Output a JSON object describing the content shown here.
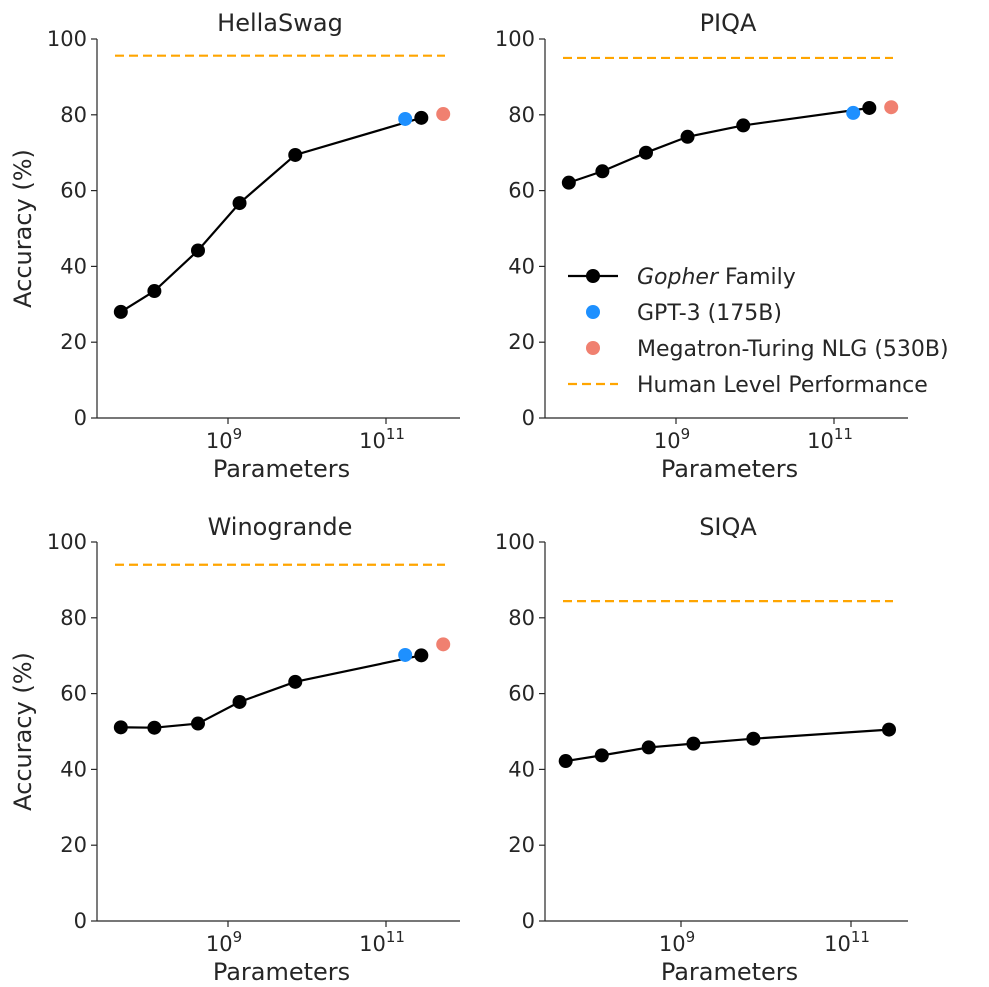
{
  "colors": {
    "gopher": "#000000",
    "gpt3": "#1E90FF",
    "mtnlg": "#F08070",
    "human": "#FFA500",
    "axis": "#262626"
  },
  "legend": {
    "placement": "inside bottom-right of PIQA panel",
    "entries": [
      {
        "key": "gopher",
        "prefix": "Gopher",
        "suffix": " Family"
      },
      {
        "key": "gpt3",
        "label": "GPT-3 (175B)"
      },
      {
        "key": "mtnlg",
        "label": "Megatron-Turing NLG (530B)"
      },
      {
        "key": "human",
        "label": "Human Level Performance"
      }
    ]
  },
  "chart_data": [
    {
      "type": "line",
      "title": "HellaSwag",
      "xlabel": "Parameters",
      "ylabel": "Accuracy (%)",
      "xscale": "log",
      "ylim": [
        0,
        100
      ],
      "yticks": [
        "0",
        "20",
        "40",
        "60",
        "80",
        "100"
      ],
      "xticks": [
        {
          "base": "10",
          "exp": "9",
          "value": 1000000000.0
        },
        {
          "base": "10",
          "exp": "11",
          "value": 100000000000.0
        }
      ],
      "series": [
        {
          "name": "Gopher Family",
          "x": [
            44000000,
            117000000,
            417000000,
            1400000000,
            7100000000,
            280000000000
          ],
          "y": [
            28.0,
            33.5,
            44.2,
            56.7,
            69.4,
            79.2
          ]
        },
        {
          "name": "GPT-3 (175B)",
          "x": [
            175000000000
          ],
          "y": [
            78.9
          ]
        },
        {
          "name": "Megatron-Turing NLG (530B)",
          "x": [
            530000000000
          ],
          "y": [
            80.2
          ]
        }
      ],
      "human_level": 95.6
    },
    {
      "type": "line",
      "title": "PIQA",
      "xlabel": "Parameters",
      "ylabel": "",
      "xscale": "log",
      "ylim": [
        0,
        100
      ],
      "yticks": [
        "0",
        "20",
        "40",
        "60",
        "80",
        "100"
      ],
      "xticks": [
        {
          "base": "10",
          "exp": "9",
          "value": 1000000000.0
        },
        {
          "base": "10",
          "exp": "11",
          "value": 100000000000.0
        }
      ],
      "series": [
        {
          "name": "Gopher Family",
          "x": [
            44000000,
            117000000,
            417000000,
            1400000000,
            7100000000,
            280000000000
          ],
          "y": [
            62.1,
            65.1,
            70.0,
            74.2,
            77.2,
            81.8
          ]
        },
        {
          "name": "GPT-3 (175B)",
          "x": [
            175000000000
          ],
          "y": [
            80.5
          ]
        },
        {
          "name": "Megatron-Turing NLG (530B)",
          "x": [
            530000000000
          ],
          "y": [
            82.0
          ]
        }
      ],
      "human_level": 95.0
    },
    {
      "type": "line",
      "title": "Winogrande",
      "xlabel": "Parameters",
      "ylabel": "Accuracy (%)",
      "xscale": "log",
      "ylim": [
        0,
        100
      ],
      "yticks": [
        "0",
        "20",
        "40",
        "60",
        "80",
        "100"
      ],
      "xticks": [
        {
          "base": "10",
          "exp": "9",
          "value": 1000000000.0
        },
        {
          "base": "10",
          "exp": "11",
          "value": 100000000000.0
        }
      ],
      "series": [
        {
          "name": "Gopher Family",
          "x": [
            44000000,
            117000000,
            417000000,
            1400000000,
            7100000000,
            280000000000
          ],
          "y": [
            51.1,
            51.0,
            52.1,
            57.8,
            63.1,
            70.1
          ]
        },
        {
          "name": "GPT-3 (175B)",
          "x": [
            175000000000
          ],
          "y": [
            70.2
          ]
        },
        {
          "name": "Megatron-Turing NLG (530B)",
          "x": [
            530000000000
          ],
          "y": [
            73.0
          ]
        }
      ],
      "human_level": 94.0
    },
    {
      "type": "line",
      "title": "SIQA",
      "xlabel": "Parameters",
      "ylabel": "",
      "xscale": "log",
      "ylim": [
        0,
        100
      ],
      "yticks": [
        "0",
        "20",
        "40",
        "60",
        "80",
        "100"
      ],
      "xticks": [
        {
          "base": "10",
          "exp": "9",
          "value": 1000000000.0
        },
        {
          "base": "10",
          "exp": "11",
          "value": 100000000000.0
        }
      ],
      "series": [
        {
          "name": "Gopher Family",
          "x": [
            44000000,
            117000000,
            417000000,
            1400000000,
            7100000000,
            280000000000
          ],
          "y": [
            42.2,
            43.7,
            45.8,
            46.8,
            48.1,
            50.5
          ]
        }
      ],
      "human_level": 84.4
    }
  ]
}
